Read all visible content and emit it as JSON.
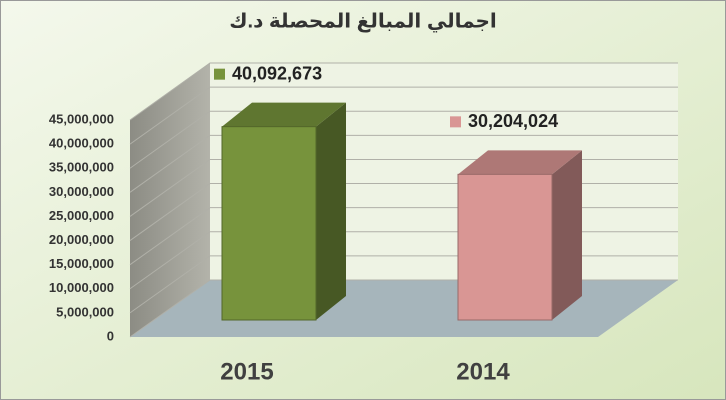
{
  "chart_data": {
    "type": "bar",
    "title": "اجمالي المبالغ المحصلة د.ك",
    "categories": [
      "2015",
      "2014"
    ],
    "values": [
      40092673,
      30204024
    ],
    "value_labels": [
      "40,092,673",
      "30,204,024"
    ],
    "colors": [
      "#77933c",
      "#d99694"
    ],
    "ylim": [
      0,
      45000000
    ],
    "yticks": [
      {
        "value": 0,
        "label": "0"
      },
      {
        "value": 5000000,
        "label": "5,000,000"
      },
      {
        "value": 10000000,
        "label": "10,000,000"
      },
      {
        "value": 15000000,
        "label": "15,000,000"
      },
      {
        "value": 20000000,
        "label": "20,000,000"
      },
      {
        "value": 25000000,
        "label": "25,000,000"
      },
      {
        "value": 30000000,
        "label": "30,000,000"
      },
      {
        "value": 35000000,
        "label": "35,000,000"
      },
      {
        "value": 40000000,
        "label": "40,000,000"
      },
      {
        "value": 45000000,
        "label": "45,000,000"
      }
    ],
    "grid": true
  }
}
